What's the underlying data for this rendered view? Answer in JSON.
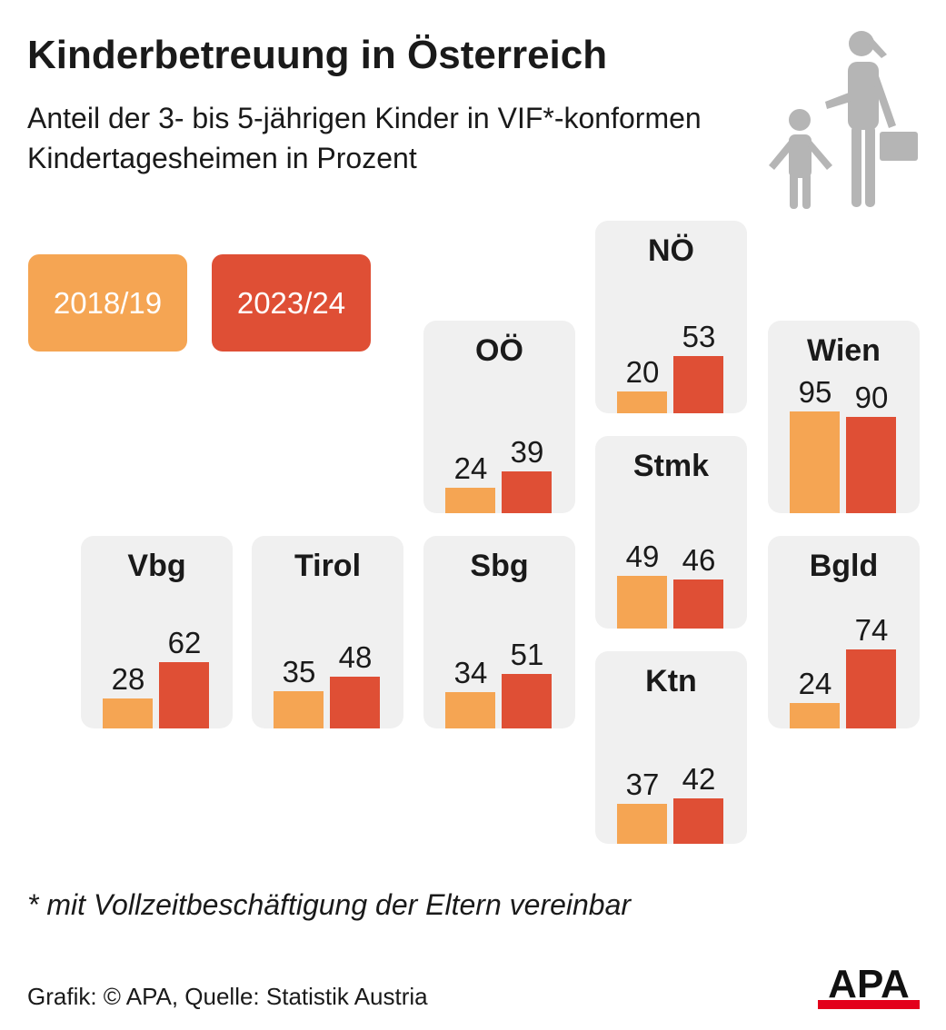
{
  "title": "Kinderbetreuung in Österreich",
  "subtitle": "Anteil der 3- bis 5-jährigen Kinder in VIF*-konformen Kindertagesheimen in Prozent",
  "footnote": "* mit Vollzeitbeschäftigung der Eltern vereinbar",
  "credit": "Grafik: © APA, Quelle: Statistik Austria",
  "logo_text": "APA",
  "icon": "parent-child-icon",
  "colors": {
    "series_2018": "#F5A553",
    "series_2023": "#DF4F35",
    "card_bg": "#F0F0F0",
    "icon": "#B5B5B5",
    "logo_red": "#E3001B"
  },
  "chart_data": {
    "type": "bar",
    "title": "Kinderbetreuung in Österreich",
    "subtitle": "Anteil der 3- bis 5-jährigen Kinder in VIF*-konformen Kindertagesheimen in Prozent",
    "unit": "Prozent",
    "categories": [
      "OÖ",
      "NÖ",
      "Wien",
      "Stmk",
      "Vbg",
      "Tirol",
      "Sbg",
      "Bgld",
      "Ktn"
    ],
    "series": [
      {
        "name": "2018/19",
        "values": [
          24,
          20,
          95,
          49,
          28,
          35,
          34,
          24,
          37
        ]
      },
      {
        "name": "2023/24",
        "values": [
          39,
          53,
          90,
          46,
          62,
          48,
          51,
          74,
          42
        ]
      }
    ],
    "ylim": [
      0,
      100
    ],
    "grid": false,
    "legend": "top-left"
  }
}
